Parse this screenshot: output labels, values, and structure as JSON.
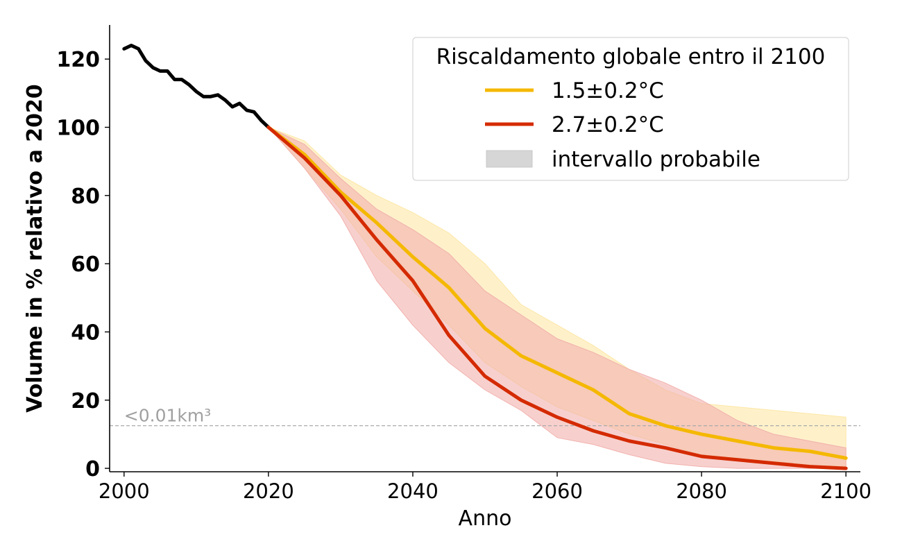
{
  "chart_data": {
    "type": "line",
    "xlabel": "Anno",
    "ylabel": "Volume in % relativo a 2020",
    "xlim": [
      1998,
      2102
    ],
    "ylim": [
      -1,
      130
    ],
    "x_ticks": [
      2000,
      2020,
      2040,
      2060,
      2080,
      2100
    ],
    "y_ticks": [
      0,
      20,
      40,
      60,
      80,
      100,
      120
    ],
    "grid": false,
    "threshold": {
      "value": 12.5,
      "label": "<0.01km³",
      "color": "#aaaaaa"
    },
    "legend": {
      "title": "Riscaldamento globale entro il 2100",
      "placement": "top-right",
      "entries": [
        "1.5±0.2°C",
        "2.7±0.2°C",
        "intervallo probabile"
      ]
    },
    "series": [
      {
        "key": "historical",
        "color": "#000000",
        "x": [
          2000,
          2001,
          2002,
          2003,
          2004,
          2005,
          2006,
          2007,
          2008,
          2009,
          2010,
          2011,
          2012,
          2013,
          2014,
          2015,
          2016,
          2017,
          2018,
          2019,
          2020
        ],
        "values": [
          123,
          124,
          123,
          119.5,
          117.5,
          116.5,
          116.5,
          114,
          114,
          112.5,
          110.5,
          109,
          109,
          109.5,
          108,
          106,
          107,
          105,
          104.5,
          102,
          100
        ]
      },
      {
        "key": "s15",
        "name": "1.5±0.2°C",
        "color": "#f5b800",
        "band_color": "#fde7a6",
        "x": [
          2020,
          2025,
          2030,
          2035,
          2040,
          2045,
          2050,
          2055,
          2060,
          2065,
          2070,
          2075,
          2080,
          2085,
          2090,
          2095,
          2100
        ],
        "values": [
          100,
          92,
          81,
          72,
          62,
          53,
          41,
          33,
          28,
          23,
          16,
          12.5,
          10,
          8,
          6,
          5,
          3
        ],
        "lower": [
          100,
          88,
          76,
          62,
          52,
          42,
          31,
          24,
          18,
          14,
          10,
          7,
          4,
          3,
          2,
          1,
          0.5
        ],
        "upper": [
          100,
          96,
          86,
          80,
          75,
          69,
          60,
          48,
          42,
          36,
          29,
          23,
          19,
          18,
          17,
          16,
          15
        ]
      },
      {
        "key": "s27",
        "name": "2.7±0.2°C",
        "color": "#d42a00",
        "band_color": "#f2b1ad",
        "x": [
          2020,
          2025,
          2030,
          2035,
          2040,
          2045,
          2050,
          2055,
          2060,
          2065,
          2070,
          2075,
          2080,
          2085,
          2090,
          2095,
          2100
        ],
        "values": [
          100,
          91,
          80,
          67,
          55,
          39,
          27,
          20,
          15,
          11,
          8,
          6,
          3.5,
          2.5,
          1.5,
          0.5,
          0
        ],
        "lower": [
          100,
          88,
          74,
          55,
          42,
          31,
          23,
          17,
          9,
          7,
          4,
          1.5,
          0.5,
          0,
          0,
          0,
          0
        ],
        "upper": [
          100,
          95,
          85,
          76,
          70,
          63,
          52,
          45,
          38,
          34,
          29,
          25,
          20,
          14,
          10,
          8,
          6
        ]
      }
    ]
  }
}
